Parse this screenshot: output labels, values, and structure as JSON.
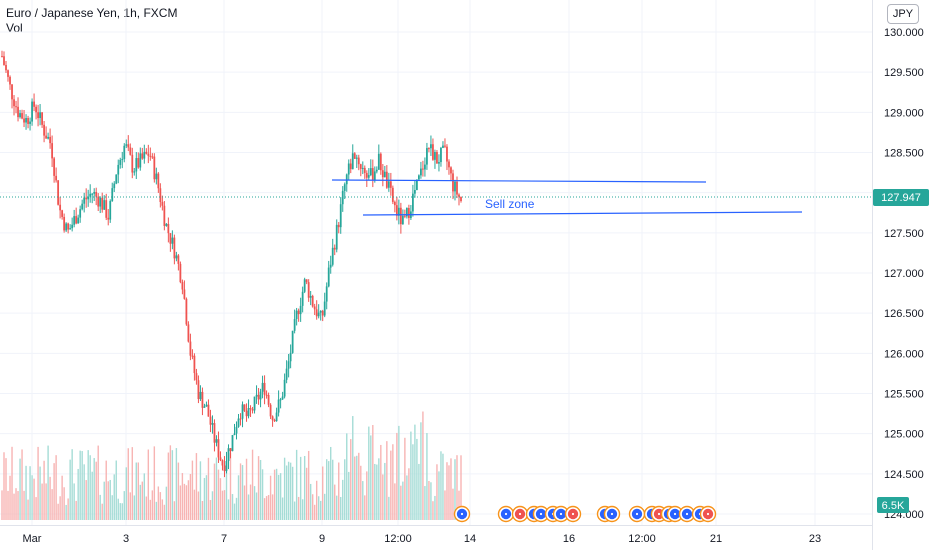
{
  "header": {
    "symbol": "Euro / Japanese Yen, 1h, FXCM",
    "indicator": "Vol",
    "currency_button": "JPY"
  },
  "colors": {
    "up": "#26a69a",
    "down": "#ef5350",
    "vol_up": "#a5dcd6",
    "vol_down": "#f7b4b3",
    "drawing": "#2962ff",
    "price_label_bg": "#26a69a",
    "volume_label_bg": "#26a69a",
    "event_flag_ring": "#f7931a",
    "event_flag_fill": "#2962ff"
  },
  "chart_data": {
    "type": "candlestick",
    "instrument": "Euro / Japanese Yen",
    "timeframe": "1h",
    "source": "FXCM",
    "y_axis": {
      "ticks": [
        "130.000",
        "129.500",
        "129.000",
        "128.500",
        "128.000",
        "127.500",
        "127.000",
        "126.500",
        "126.000",
        "125.500",
        "125.000",
        "124.500",
        "124.000"
      ],
      "ylim": [
        123.9,
        130.2
      ]
    },
    "x_axis": {
      "ticks": [
        "Mar",
        "3",
        "7",
        "9",
        "12:00",
        "14",
        "16",
        "12:00",
        "21",
        "23"
      ]
    },
    "last_price": "127.947",
    "last_volume": "6.5K",
    "close_path": [
      129.7,
      129.3,
      129.0,
      128.9,
      129.1,
      128.8,
      128.6,
      127.8,
      127.5,
      127.7,
      127.9,
      128.0,
      127.9,
      127.7,
      128.3,
      128.6,
      128.3,
      128.4,
      128.5,
      128.1,
      127.6,
      127.3,
      126.9,
      126.0,
      125.5,
      125.3,
      124.9,
      124.6,
      124.9,
      125.3,
      125.2,
      125.4,
      125.6,
      125.2,
      125.4,
      125.9,
      126.5,
      126.9,
      126.6,
      126.4,
      127.1,
      127.6,
      128.2,
      128.5,
      128.3,
      128.2,
      128.4,
      128.1,
      127.8,
      127.6,
      127.9,
      128.2,
      128.6,
      128.4,
      128.5,
      128.1,
      127.9
    ],
    "annotations": [
      {
        "type": "trendline",
        "label": "",
        "from": [
          128.15,
          "Mar 10"
        ],
        "to": [
          128.13,
          "Mar 19"
        ]
      },
      {
        "type": "trendline",
        "label": "Sell zone",
        "from": [
          127.73,
          "Mar 10"
        ],
        "to": [
          127.76,
          "Mar 22"
        ]
      }
    ],
    "events_count": 20
  }
}
